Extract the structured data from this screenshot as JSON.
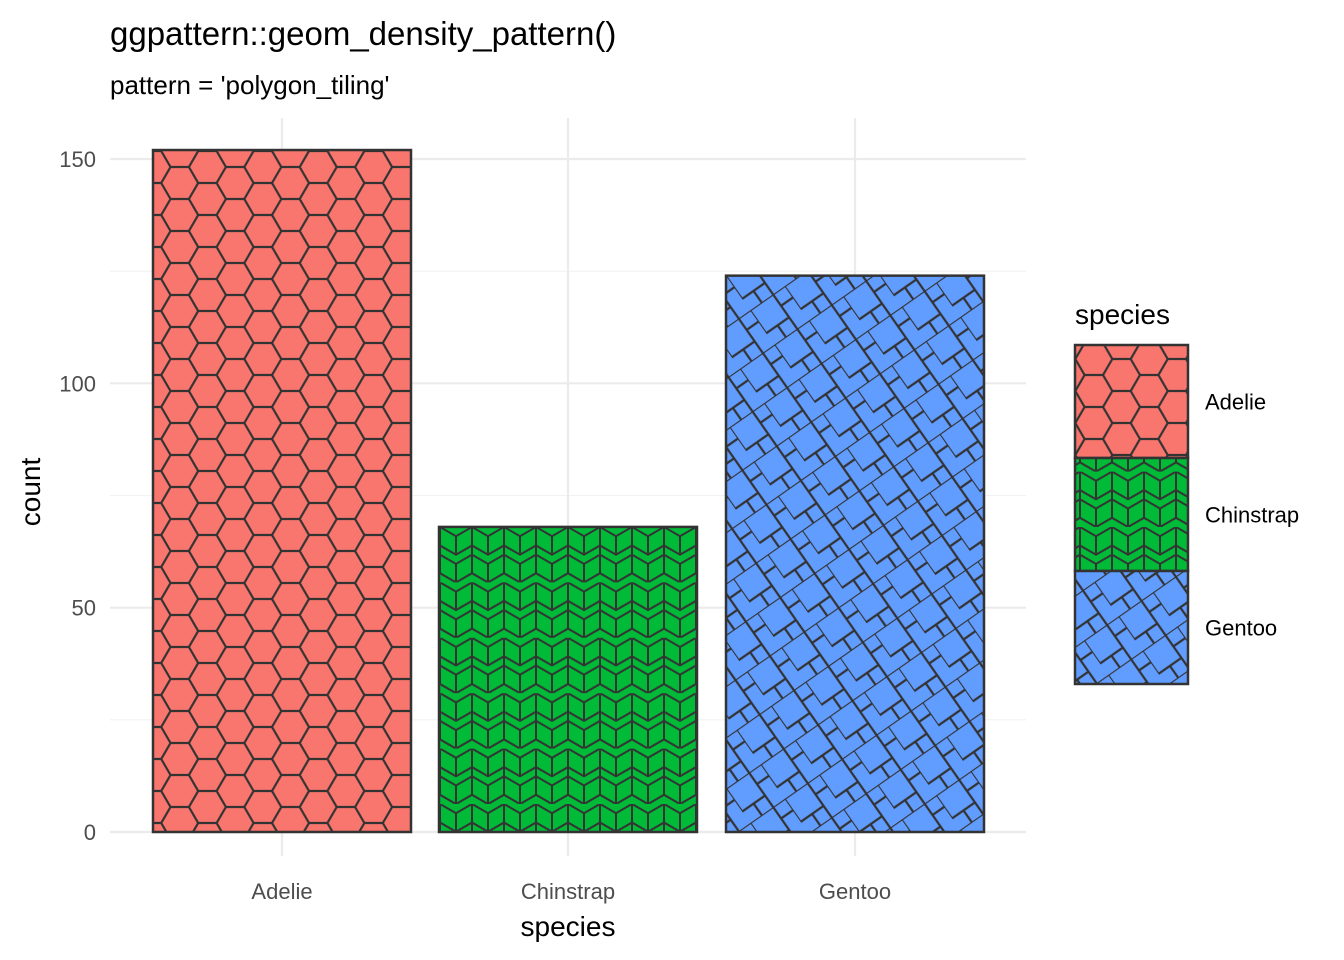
{
  "chart_data": {
    "type": "bar",
    "title": "ggpattern::geom_density_pattern()",
    "subtitle": "pattern = 'polygon_tiling'",
    "xlabel": "species",
    "ylabel": "count",
    "categories": [
      "Adelie",
      "Chinstrap",
      "Gentoo"
    ],
    "values": [
      152,
      68,
      124
    ],
    "ylim": [
      0,
      160
    ],
    "yticks": [
      0,
      50,
      100,
      150
    ],
    "ytick_labels": [
      "0",
      "50",
      "100",
      "150"
    ],
    "grid": true,
    "legend": {
      "title": "species",
      "placement": "right",
      "entries": [
        "Adelie",
        "Chinstrap",
        "Gentoo"
      ]
    },
    "colors": [
      "#F8766D",
      "#00BA38",
      "#619CFF"
    ],
    "patterns": [
      "hexagon-tiling",
      "rhombille-tiling",
      "rotated-square-tiling"
    ]
  }
}
